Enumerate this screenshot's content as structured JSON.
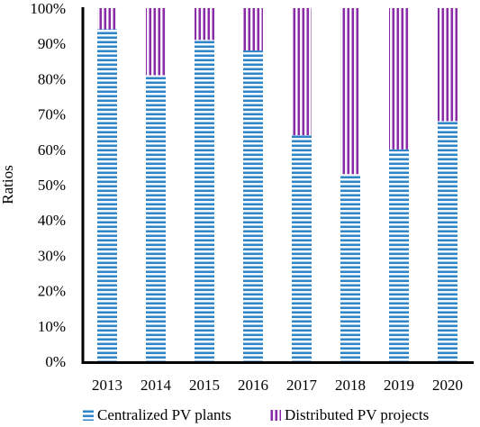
{
  "chart_data": {
    "type": "bar",
    "stacked": true,
    "categories": [
      "2013",
      "2014",
      "2015",
      "2016",
      "2017",
      "2018",
      "2019",
      "2020"
    ],
    "series": [
      {
        "name": "Centralized PV plants",
        "values": [
          94,
          81,
          91,
          88,
          64,
          53,
          60,
          68
        ],
        "color": "#2e86c8",
        "pattern": "horizontal-stripes"
      },
      {
        "name": "Distributed PV projects",
        "values": [
          6,
          19,
          9,
          12,
          36,
          47,
          40,
          32
        ],
        "color": "#8a2ba8",
        "pattern": "vertical-stripes"
      }
    ],
    "xlabel": "",
    "ylabel": "Ratios",
    "ylim": [
      0,
      100
    ],
    "y_ticks": [
      "0%",
      "10%",
      "20%",
      "30%",
      "40%",
      "50%",
      "60%",
      "70%",
      "80%",
      "90%",
      "100%"
    ],
    "grid": false,
    "legend_position": "bottom"
  }
}
